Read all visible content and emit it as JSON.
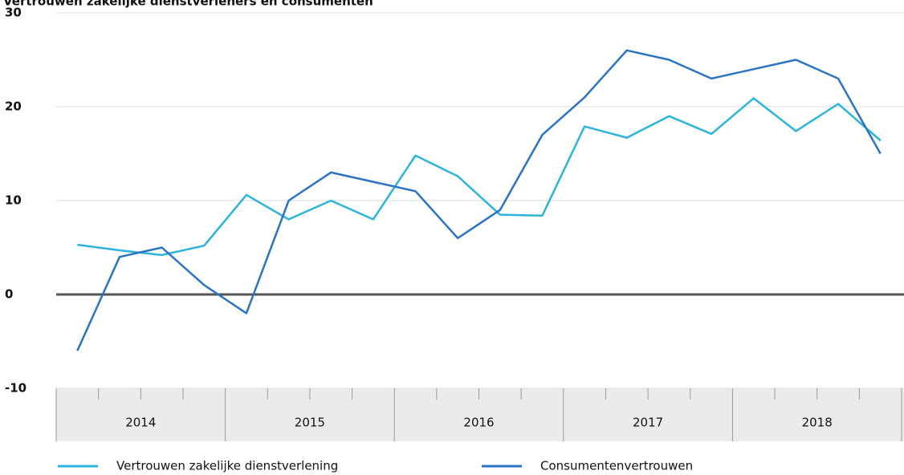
{
  "chart_data": {
    "type": "line",
    "title": "Vertrouwen zakelijke dienstverleners en consumenten",
    "categories": [
      null,
      null,
      null,
      null,
      null,
      null,
      null,
      null,
      null,
      null,
      null,
      null,
      null,
      null,
      null,
      null,
      null,
      null,
      null,
      null
    ],
    "year_labels": [
      "2014",
      "2015",
      "2016",
      "2017",
      "2018"
    ],
    "series": [
      {
        "name": "Vertrouwen zakelijke dienstverlening",
        "color": "#2cb4db",
        "values": [
          5.3,
          4.7,
          4.2,
          5.2,
          10.6,
          8.0,
          10.0,
          8.0,
          14.8,
          12.6,
          8.5,
          8.4,
          17.9,
          16.7,
          19.0,
          17.1,
          20.9,
          17.4,
          20.3,
          16.4
        ]
      },
      {
        "name": "Consumentenvertrouwen",
        "color": "#2b74c4",
        "values": [
          -6,
          4,
          5,
          1,
          -2,
          10,
          13,
          12,
          11,
          6,
          9,
          17,
          21,
          26,
          25,
          23,
          24,
          25,
          23,
          15
        ]
      }
    ],
    "ylim": [
      -10,
      30
    ],
    "yticks": [
      -10,
      0,
      10,
      20,
      30
    ],
    "grid": true
  }
}
